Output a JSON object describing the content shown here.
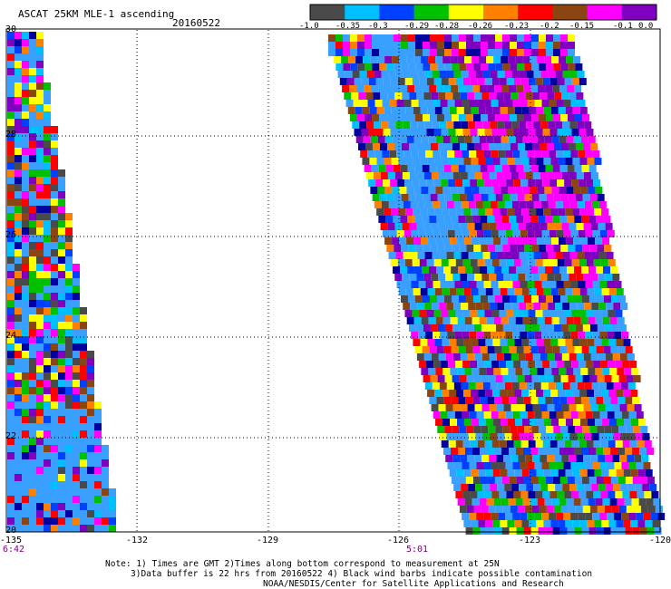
{
  "title": "ASCAT 25KM MLE-1 ascending",
  "date": "20160522",
  "colorbar": {
    "labels": [
      "-1.0",
      "-0.35",
      "-0.3",
      "-0.29",
      "-0.28",
      "-0.26",
      "-0.23",
      "-0.2",
      "-0.15",
      "-0.1",
      "0.0"
    ],
    "colors": [
      "#4a4a4a",
      "#00bfff",
      "#0040ff",
      "#00c000",
      "#ffff00",
      "#ff8000",
      "#ff0000",
      "#8b4513",
      "#ff00ff",
      "#8000c0"
    ]
  },
  "axes": {
    "lat_labels": [
      "30",
      "28",
      "26",
      "24",
      "22",
      "20"
    ],
    "lon_labels": [
      "-135",
      "-132",
      "-129",
      "-126",
      "-123",
      "-120"
    ]
  },
  "time_labels": {
    "left": "6:42",
    "middle": "5:01"
  },
  "note": {
    "line1": "Note: 1) Times are GMT 2)Times along bottom correspond to measurement at 25N",
    "line2": "3)Data buffer is 22 hrs from 20160522 4) Black wind barbs indicate possible contamination",
    "line3": "NOAA/NESDIS/Center for Satellite Applications and Research"
  },
  "swath_palette": [
    "#0040ff",
    "#3aa0ff",
    "#3aa0ff",
    "#3aa0ff",
    "#00c000",
    "#ffff00",
    "#ff8000",
    "#ff0000",
    "#8b4513",
    "#ff00ff",
    "#8000c0",
    "#0000a0",
    "#4a4a4a",
    "#00bfff"
  ]
}
